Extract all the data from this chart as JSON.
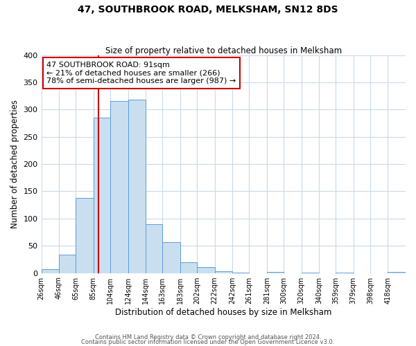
{
  "title": "47, SOUTHBROOK ROAD, MELKSHAM, SN12 8DS",
  "subtitle": "Size of property relative to detached houses in Melksham",
  "xlabel": "Distribution of detached houses by size in Melksham",
  "ylabel": "Number of detached properties",
  "bin_labels": [
    "26sqm",
    "46sqm",
    "65sqm",
    "85sqm",
    "104sqm",
    "124sqm",
    "144sqm",
    "163sqm",
    "183sqm",
    "202sqm",
    "222sqm",
    "242sqm",
    "261sqm",
    "281sqm",
    "300sqm",
    "320sqm",
    "340sqm",
    "359sqm",
    "379sqm",
    "398sqm",
    "418sqm"
  ],
  "bar_heights": [
    7,
    34,
    138,
    285,
    315,
    318,
    90,
    57,
    20,
    11,
    3,
    1,
    0,
    2,
    0,
    1,
    0,
    1,
    0,
    0,
    2
  ],
  "bar_color": "#c9dff0",
  "bar_edge_color": "#5b9bd5",
  "property_sqm": 91,
  "vline_color": "#cc0000",
  "annotation_text": "47 SOUTHBROOK ROAD: 91sqm\n← 21% of detached houses are smaller (266)\n78% of semi-detached houses are larger (987) →",
  "annotation_box_color": "#ffffff",
  "annotation_box_edge": "#cc0000",
  "footer_line1": "Contains HM Land Registry data © Crown copyright and database right 2024.",
  "footer_line2": "Contains public sector information licensed under the Open Government Licence v3.0.",
  "ylim": [
    0,
    400
  ],
  "background_color": "#ffffff",
  "grid_color": "#c8daea",
  "bin_values": [
    26,
    46,
    65,
    85,
    104,
    124,
    144,
    163,
    183,
    202,
    222,
    242,
    261,
    281,
    300,
    320,
    340,
    359,
    379,
    398,
    418
  ]
}
